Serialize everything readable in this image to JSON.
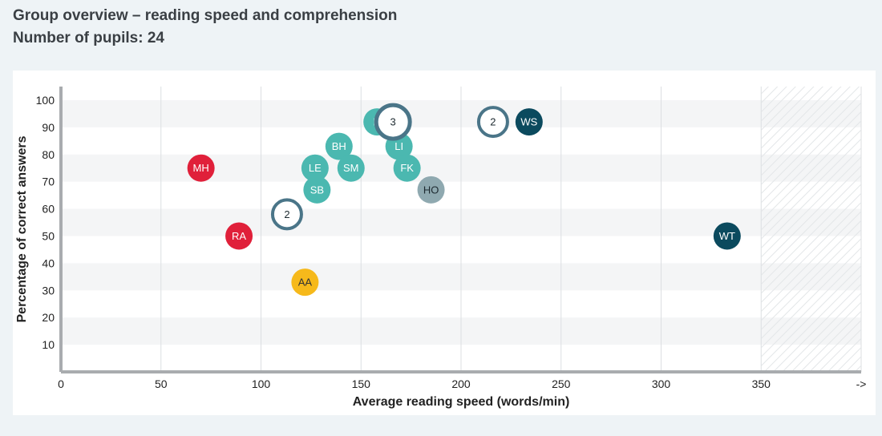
{
  "header": {
    "title": "Group overview – reading speed and comprehension",
    "subtitle": "Number of pupils: 24"
  },
  "chart_data": {
    "type": "scatter",
    "xlabel": "Average reading speed (words/min)",
    "ylabel": "Percentage of correct answers",
    "xlim": [
      0,
      400
    ],
    "ylim": [
      0,
      105
    ],
    "x_ticks": [
      "0",
      "50",
      "100",
      "150",
      "200",
      "250",
      "300",
      "350",
      "->"
    ],
    "y_ticks": [
      "10",
      "20",
      "30",
      "40",
      "50",
      "60",
      "70",
      "80",
      "90",
      "100"
    ],
    "grid": true,
    "shaded_region_x_from": 350,
    "colors": {
      "red": "#e0203a",
      "yellow": "#f6b91b",
      "teal": "#4bb8b0",
      "grey": "#8fa9b0",
      "dark": "#0b4a5e",
      "group": "#4a7588"
    },
    "points": [
      {
        "label": "MH",
        "x": 70,
        "y": 75,
        "color": "red"
      },
      {
        "label": "RA",
        "x": 89,
        "y": 50,
        "color": "red"
      },
      {
        "label": "AA",
        "x": 122,
        "y": 33,
        "color": "yellow"
      },
      {
        "label": "2",
        "x": 113,
        "y": 58,
        "color": "group",
        "group": true
      },
      {
        "label": "LE",
        "x": 127,
        "y": 75,
        "color": "teal"
      },
      {
        "label": "SB",
        "x": 128,
        "y": 67,
        "color": "teal"
      },
      {
        "label": "BH",
        "x": 139,
        "y": 83,
        "color": "teal"
      },
      {
        "label": "SM",
        "x": 145,
        "y": 75,
        "color": "teal"
      },
      {
        "label": "N",
        "x": 158,
        "y": 92,
        "color": "teal"
      },
      {
        "label": "LI",
        "x": 169,
        "y": 83,
        "color": "teal"
      },
      {
        "label": "FK",
        "x": 173,
        "y": 75,
        "color": "teal"
      },
      {
        "label": "HO",
        "x": 185,
        "y": 67,
        "color": "grey"
      },
      {
        "label": "3",
        "x": 166,
        "y": 92,
        "color": "group",
        "group": true,
        "large": true
      },
      {
        "label": "2",
        "x": 216,
        "y": 92,
        "color": "group",
        "group": true
      },
      {
        "label": "WS",
        "x": 234,
        "y": 92,
        "color": "dark"
      },
      {
        "label": "WT",
        "x": 333,
        "y": 50,
        "color": "dark"
      }
    ]
  }
}
